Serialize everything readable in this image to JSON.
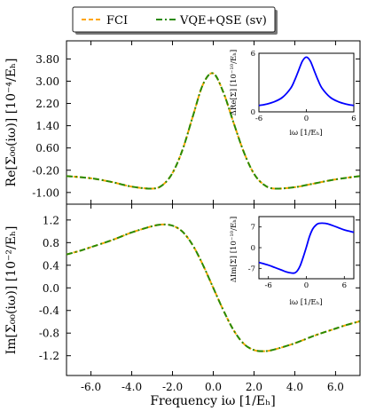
{
  "legend": {
    "entries": [
      {
        "label": "FCI",
        "color": "#ffa500",
        "style": "dashed"
      },
      {
        "label": "VQE+QSE (sv)",
        "color": "#2a8a00",
        "style": "dashdot"
      }
    ]
  },
  "chart_data": [
    {
      "type": "line",
      "panel": "top",
      "xlabel": "",
      "ylabel": "Re[Σ₀₀(iω)] [10⁻⁴/Eₕ]",
      "xlim": [
        -7.2,
        7.2
      ],
      "ylim": [
        -1.42,
        4.45
      ],
      "yticks": [
        "3.80",
        "3.00",
        "2.20",
        "1.40",
        "0.60",
        "-0.20",
        "-1.00"
      ],
      "ytick_values": [
        3.8,
        3.0,
        2.2,
        1.4,
        0.6,
        -0.2,
        -1.0
      ],
      "x": [
        -7.2,
        -6.0,
        -5.0,
        -4.0,
        -3.0,
        -2.5,
        -2.0,
        -1.5,
        -1.0,
        -0.5,
        0.0,
        0.5,
        1.0,
        1.5,
        2.0,
        2.5,
        3.0,
        4.0,
        5.0,
        6.0,
        7.2
      ],
      "series": [
        {
          "name": "FCI",
          "values": [
            -0.41,
            -0.49,
            -0.62,
            -0.79,
            -0.86,
            -0.74,
            -0.3,
            0.55,
            1.74,
            2.89,
            3.28,
            2.59,
            1.5,
            0.45,
            -0.33,
            -0.73,
            -0.86,
            -0.81,
            -0.67,
            -0.53,
            -0.41
          ]
        },
        {
          "name": "VQE+QSE (sv)",
          "values": [
            -0.41,
            -0.49,
            -0.62,
            -0.79,
            -0.86,
            -0.74,
            -0.3,
            0.55,
            1.74,
            2.89,
            3.28,
            2.59,
            1.5,
            0.45,
            -0.33,
            -0.73,
            -0.86,
            -0.81,
            -0.67,
            -0.53,
            -0.41
          ]
        }
      ],
      "inset": {
        "type": "line",
        "ylabel": "ΔRe[Σ] [10⁻¹⁰/Eₕ]",
        "xlabel": "iω [1/Eₕ]",
        "xticks": [
          "-6",
          "0",
          "6"
        ],
        "xtick_values": [
          -6,
          0,
          6
        ],
        "yticks": [
          "6",
          "0"
        ],
        "ytick_values": [
          6,
          0
        ],
        "xlim": [
          -6,
          6
        ],
        "ylim": [
          0,
          6
        ],
        "x": [
          -6,
          -5,
          -4,
          -3,
          -2,
          -1.5,
          -1,
          -0.5,
          0,
          0.5,
          1,
          1.5,
          2,
          3,
          4,
          5,
          6
        ],
        "values": [
          0.65,
          0.8,
          1.05,
          1.5,
          2.4,
          3.2,
          4.2,
          5.2,
          5.6,
          5.2,
          4.2,
          3.2,
          2.4,
          1.5,
          1.05,
          0.8,
          0.65
        ],
        "color": "#0000ff"
      }
    },
    {
      "type": "line",
      "panel": "bottom",
      "xlabel": "Frequency iω [1/Eₕ]",
      "ylabel": "Im[Σ₀₀(iω)] [10⁻²/Eₕ]",
      "xlim": [
        -7.2,
        7.2
      ],
      "ylim": [
        -1.55,
        1.48
      ],
      "xticks": [
        "-6.0",
        "-4.0",
        "-2.0",
        "0.0",
        "2.0",
        "4.0",
        "6.0"
      ],
      "xtick_values": [
        -6,
        -4,
        -2,
        0,
        2,
        4,
        6
      ],
      "yticks": [
        "1.2",
        "0.8",
        "0.4",
        "0.0",
        "-0.4",
        "-0.8",
        "-1.2"
      ],
      "ytick_values": [
        1.2,
        0.8,
        0.4,
        0.0,
        -0.4,
        -0.8,
        -1.2
      ],
      "x": [
        -7.2,
        -6.5,
        -6.0,
        -5.0,
        -4.0,
        -3.0,
        -2.5,
        -2.0,
        -1.5,
        -1.0,
        -0.5,
        0.0,
        0.5,
        1.0,
        1.5,
        2.0,
        2.5,
        3.0,
        4.0,
        5.0,
        6.0,
        6.5,
        7.2
      ],
      "series": [
        {
          "name": "FCI",
          "values": [
            0.59,
            0.66,
            0.72,
            0.84,
            0.98,
            1.09,
            1.12,
            1.1,
            0.99,
            0.75,
            0.4,
            0.0,
            -0.4,
            -0.75,
            -0.99,
            -1.1,
            -1.12,
            -1.09,
            -0.98,
            -0.84,
            -0.72,
            -0.66,
            -0.59
          ]
        },
        {
          "name": "VQE+QSE (sv)",
          "values": [
            0.59,
            0.66,
            0.72,
            0.84,
            0.98,
            1.09,
            1.12,
            1.1,
            0.99,
            0.75,
            0.4,
            0.0,
            -0.4,
            -0.75,
            -0.99,
            -1.1,
            -1.12,
            -1.09,
            -0.98,
            -0.84,
            -0.72,
            -0.66,
            -0.59
          ]
        }
      ],
      "inset": {
        "type": "line",
        "ylabel": "ΔIm[Σ] [10⁻¹⁰/Eₕ]",
        "xlabel": "iω [1/Eₕ]",
        "xticks": [
          "-6",
          "0",
          "6"
        ],
        "xtick_values": [
          -6,
          0,
          6
        ],
        "yticks": [
          "7",
          "0",
          "-7"
        ],
        "ytick_values": [
          7,
          0,
          -7
        ],
        "xlim": [
          -7.5,
          7.5
        ],
        "ylim": [
          -10.5,
          10.5
        ],
        "x": [
          -7.5,
          -6,
          -5,
          -4,
          -3,
          -2,
          -1.5,
          -1,
          -0.5,
          0,
          0.5,
          1,
          1.5,
          2,
          3,
          4,
          5,
          6,
          7.5
        ],
        "values": [
          -5,
          -5.9,
          -6.7,
          -7.5,
          -8.3,
          -8.6,
          -8.0,
          -6.2,
          -3.2,
          0.2,
          3.8,
          6.3,
          7.6,
          8.2,
          8.2,
          7.6,
          6.8,
          6.0,
          5.2
        ],
        "color": "#0000ff"
      }
    }
  ]
}
